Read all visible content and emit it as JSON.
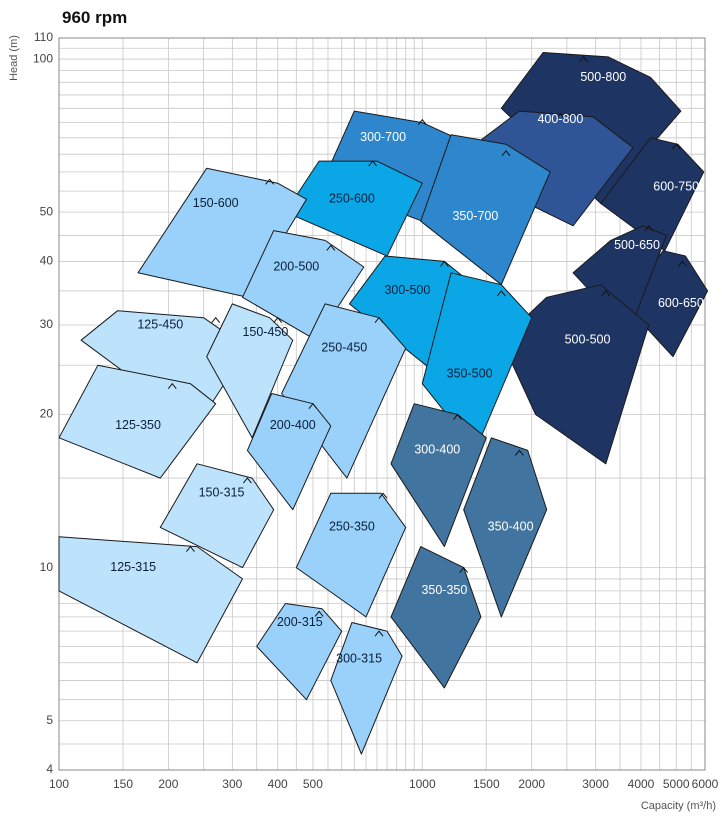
{
  "chart_data": {
    "type": "area",
    "title": "960 rpm",
    "xlabel": "Capacity (m³/h)",
    "ylabel": "Head (m)",
    "xscale": "log",
    "yscale": "log",
    "xlim": [
      100,
      6000
    ],
    "ylim": [
      4,
      110
    ],
    "grid": true,
    "x_tick_labels": [
      {
        "value": 100,
        "label": "100"
      },
      {
        "value": 150,
        "label": "150"
      },
      {
        "value": 200,
        "label": "200"
      },
      {
        "value": 300,
        "label": "300"
      },
      {
        "value": 400,
        "label": "400"
      },
      {
        "value": 500,
        "label": "500"
      },
      {
        "value": 1000,
        "label": "1000"
      },
      {
        "value": 1500,
        "label": "1500"
      },
      {
        "value": 2000,
        "label": "2000"
      },
      {
        "value": 3000,
        "label": "3000"
      },
      {
        "value": 4000,
        "label": "4000"
      },
      {
        "value": 5000,
        "label": "5000"
      },
      {
        "value": 6000,
        "label": "6000"
      }
    ],
    "y_tick_labels": [
      {
        "value": 4,
        "label": "4"
      },
      {
        "value": 5,
        "label": "5"
      },
      {
        "value": 10,
        "label": "10"
      },
      {
        "value": 20,
        "label": "20"
      },
      {
        "value": 30,
        "label": "30"
      },
      {
        "value": 40,
        "label": "40"
      },
      {
        "value": 50,
        "label": "50"
      },
      {
        "value": 100,
        "label": "100"
      },
      {
        "value": 110,
        "label": "110"
      }
    ],
    "pumps": [
      {
        "name": "500-800",
        "color": "#1e3563",
        "label_at": [
          3150,
          92
        ],
        "polygon": [
          [
            1650,
            80
          ],
          [
            2150,
            103
          ],
          [
            3250,
            101
          ],
          [
            4250,
            92
          ],
          [
            5150,
            79
          ],
          [
            3100,
            52
          ]
        ],
        "bep": [
          2780,
          101
        ]
      },
      {
        "name": "600-750",
        "color": "#1e3563",
        "label_at": [
          5000,
          56
        ],
        "polygon": [
          [
            3100,
            52
          ],
          [
            4250,
            70
          ],
          [
            5050,
            68
          ],
          [
            5950,
            60
          ],
          [
            4650,
            42
          ]
        ],
        "bep": [
          5000,
          68
        ]
      },
      {
        "name": "600-650",
        "color": "#1e3563",
        "label_at": [
          5150,
          33
        ],
        "polygon": [
          [
            3600,
            33
          ],
          [
            4600,
            42
          ],
          [
            5300,
            41
          ],
          [
            6100,
            35
          ],
          [
            4900,
            26
          ]
        ],
        "bep": [
          5200,
          40
        ]
      },
      {
        "name": "500-650",
        "color": "#1e3563",
        "label_at": [
          3900,
          43
        ],
        "polygon": [
          [
            2600,
            38
          ],
          [
            3300,
            44
          ],
          [
            4050,
            47
          ],
          [
            4700,
            45
          ],
          [
            3700,
            29
          ]
        ],
        "bep": [
          4200,
          47
        ]
      },
      {
        "name": "500-500",
        "color": "#1e3563",
        "label_at": [
          2850,
          28
        ],
        "polygon": [
          [
            1650,
            28
          ],
          [
            2200,
            34
          ],
          [
            3100,
            36
          ],
          [
            4200,
            30
          ],
          [
            3200,
            16
          ],
          [
            2050,
            20
          ]
        ],
        "bep": [
          3200,
          35
        ]
      },
      {
        "name": "400-800",
        "color": "#2f5597",
        "label_at": [
          2400,
          76
        ],
        "polygon": [
          [
            1400,
            68
          ],
          [
            1850,
            79
          ],
          [
            2950,
            77
          ],
          [
            3800,
            67
          ],
          [
            2600,
            47
          ],
          [
            1950,
            52
          ]
        ],
        "bep": [
          2400,
          78
        ]
      },
      {
        "name": "300-700",
        "color": "#2e86cc",
        "label_at": [
          780,
          70
        ],
        "polygon": [
          [
            530,
            57
          ],
          [
            650,
            79
          ],
          [
            1000,
            75
          ],
          [
            1350,
            68
          ],
          [
            1000,
            48
          ]
        ],
        "bep": [
          1000,
          76
        ]
      },
      {
        "name": "350-700",
        "color": "#2e86cc",
        "label_at": [
          1400,
          49
        ],
        "polygon": [
          [
            990,
            48
          ],
          [
            1200,
            71
          ],
          [
            1700,
            68
          ],
          [
            2250,
            60
          ],
          [
            1650,
            36
          ]
        ],
        "bep": [
          1700,
          66
        ]
      },
      {
        "name": "250-600",
        "color": "#0aa6e6",
        "label_at": [
          640,
          53
        ],
        "polygon": [
          [
            420,
            50
          ],
          [
            520,
            63
          ],
          [
            750,
            63
          ],
          [
            1000,
            57
          ],
          [
            800,
            41
          ]
        ],
        "bep": [
          730,
          63
        ]
      },
      {
        "name": "300-500",
        "color": "#0aa6e6",
        "label_at": [
          910,
          35
        ],
        "polygon": [
          [
            630,
            33
          ],
          [
            790,
            41
          ],
          [
            1150,
            40
          ],
          [
            1450,
            35
          ],
          [
            1100,
            24
          ]
        ],
        "bep": [
          1150,
          40
        ]
      },
      {
        "name": "350-500",
        "color": "#0aa6e6",
        "label_at": [
          1350,
          24
        ],
        "polygon": [
          [
            1000,
            23
          ],
          [
            1200,
            38
          ],
          [
            1650,
            36
          ],
          [
            2000,
            31
          ],
          [
            1400,
            17
          ]
        ],
        "bep": [
          1650,
          35
        ]
      },
      {
        "name": "150-600",
        "color": "#99d1fa",
        "label_at": [
          270,
          52
        ],
        "polygon": [
          [
            165,
            38
          ],
          [
            255,
            61
          ],
          [
            400,
            57
          ],
          [
            480,
            53
          ],
          [
            330,
            34
          ]
        ],
        "bep": [
          380,
          58
        ]
      },
      {
        "name": "200-500",
        "color": "#99d1fa",
        "label_at": [
          450,
          39
        ],
        "polygon": [
          [
            320,
            34
          ],
          [
            390,
            46
          ],
          [
            540,
            44
          ],
          [
            690,
            39
          ],
          [
            510,
            28
          ]
        ],
        "bep": [
          560,
          43
        ]
      },
      {
        "name": "125-450",
        "color": "#bde2fb",
        "label_at": [
          190,
          30
        ],
        "polygon": [
          [
            115,
            28
          ],
          [
            145,
            32
          ],
          [
            250,
            31
          ],
          [
            330,
            27
          ],
          [
            240,
            19
          ]
        ],
        "bep": [
          270,
          31
        ]
      },
      {
        "name": "150-450",
        "color": "#bde2fb",
        "label_at": [
          370,
          29
        ],
        "polygon": [
          [
            255,
            26
          ],
          [
            300,
            33
          ],
          [
            380,
            31
          ],
          [
            440,
            28
          ],
          [
            340,
            18
          ]
        ],
        "bep": [
          400,
          31
        ]
      },
      {
        "name": "250-450",
        "color": "#99d1fa",
        "label_at": [
          610,
          27
        ],
        "polygon": [
          [
            410,
            22
          ],
          [
            540,
            33
          ],
          [
            760,
            31
          ],
          [
            900,
            27
          ],
          [
            620,
            15
          ]
        ],
        "bep": [
          760,
          31
        ]
      },
      {
        "name": "125-350",
        "color": "#bde2fb",
        "label_at": [
          165,
          19
        ],
        "polygon": [
          [
            100,
            18
          ],
          [
            128,
            25
          ],
          [
            230,
            23
          ],
          [
            270,
            21
          ],
          [
            190,
            15
          ]
        ],
        "bep": [
          205,
          23
        ]
      },
      {
        "name": "200-400",
        "color": "#99d1fa",
        "label_at": [
          440,
          19
        ],
        "polygon": [
          [
            330,
            17
          ],
          [
            385,
            22
          ],
          [
            500,
            21
          ],
          [
            560,
            19
          ],
          [
            440,
            13
          ]
        ],
        "bep": [
          500,
          21
        ]
      },
      {
        "name": "150-315",
        "color": "#bde2fb",
        "label_at": [
          280,
          14
        ],
        "polygon": [
          [
            190,
            12
          ],
          [
            240,
            16
          ],
          [
            340,
            15
          ],
          [
            390,
            13
          ],
          [
            320,
            10
          ]
        ],
        "bep": [
          330,
          15
        ]
      },
      {
        "name": "300-400",
        "color": "#41749e",
        "label_at": [
          1100,
          17
        ],
        "polygon": [
          [
            820,
            16
          ],
          [
            950,
            21
          ],
          [
            1250,
            20
          ],
          [
            1500,
            18
          ],
          [
            1150,
            11
          ]
        ],
        "bep": [
          1250,
          20
        ]
      },
      {
        "name": "350-400",
        "color": "#41749e",
        "label_at": [
          1750,
          12
        ],
        "polygon": [
          [
            1300,
            13
          ],
          [
            1550,
            18
          ],
          [
            1950,
            17
          ],
          [
            2200,
            13
          ],
          [
            1650,
            8
          ]
        ],
        "bep": [
          1850,
          17
        ]
      },
      {
        "name": "250-350",
        "color": "#99d1fa",
        "label_at": [
          640,
          12
        ],
        "polygon": [
          [
            450,
            10
          ],
          [
            560,
            14
          ],
          [
            770,
            14
          ],
          [
            900,
            12
          ],
          [
            700,
            8
          ]
        ],
        "bep": [
          780,
          14
        ]
      },
      {
        "name": "350-350",
        "color": "#41749e",
        "label_at": [
          1150,
          9
        ],
        "polygon": [
          [
            820,
            8
          ],
          [
            990,
            11
          ],
          [
            1300,
            10
          ],
          [
            1450,
            8
          ],
          [
            1150,
            5.8
          ]
        ],
        "bep": [
          1300,
          10
        ]
      },
      {
        "name": "125-315",
        "color": "#bde2fb",
        "label_at": [
          160,
          10
        ],
        "polygon": [
          [
            100,
            9
          ],
          [
            100,
            11.5
          ],
          [
            240,
            11
          ],
          [
            320,
            9.5
          ],
          [
            240,
            6.5
          ]
        ],
        "bep": [
          230,
          11
        ]
      },
      {
        "name": "200-315",
        "color": "#99d1fa",
        "label_at": [
          460,
          7.8
        ],
        "polygon": [
          [
            350,
            7
          ],
          [
            420,
            8.5
          ],
          [
            530,
            8.3
          ],
          [
            600,
            7.5
          ],
          [
            480,
            5.5
          ]
        ],
        "bep": [
          520,
          8.2
        ]
      },
      {
        "name": "300-315",
        "color": "#99d1fa",
        "label_at": [
          670,
          6.6
        ],
        "polygon": [
          [
            560,
            6
          ],
          [
            640,
            7.8
          ],
          [
            800,
            7.5
          ],
          [
            880,
            6.7
          ],
          [
            680,
            4.3
          ]
        ],
        "bep": [
          760,
          7.5
        ]
      }
    ]
  }
}
